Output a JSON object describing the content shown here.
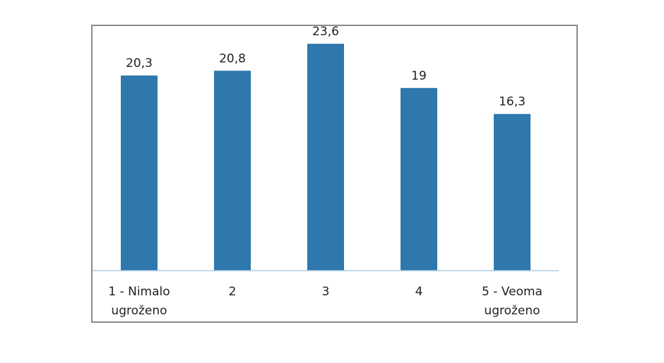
{
  "chart_data": {
    "type": "bar",
    "categories": [
      "1 - Nimalo ugroženo",
      "2",
      "3",
      "4",
      "5 - Veoma ugroženo"
    ],
    "category_lines": [
      [
        "1 - Nimalo",
        "ugroženo"
      ],
      [
        "2"
      ],
      [
        "3"
      ],
      [
        "4"
      ],
      [
        "5 - Veoma",
        "ugroženo"
      ]
    ],
    "values": [
      20.3,
      20.8,
      23.6,
      19,
      16.3
    ],
    "value_labels": [
      "20,3",
      "20,8",
      "23,6",
      "19",
      "16,3"
    ],
    "title": "",
    "xlabel": "",
    "ylabel": "",
    "ylim": [
      0,
      25
    ],
    "grid": false,
    "legend": "none",
    "bar_color": "#2e78ad",
    "axis_color": "#aecde6",
    "frame_color": "#8c8c8c"
  }
}
